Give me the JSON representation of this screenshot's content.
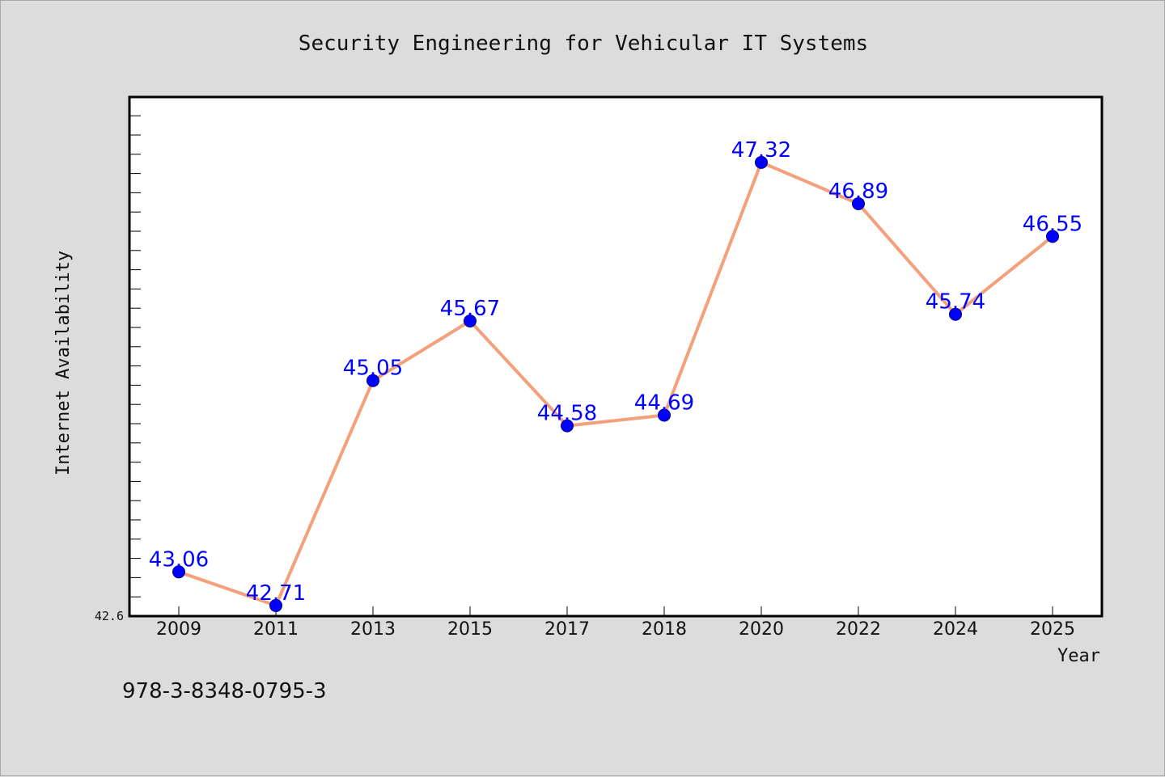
{
  "chart_data": {
    "type": "line",
    "title": "Security Engineering for Vehicular IT Systems",
    "xlabel": "Year",
    "ylabel": "Internet Availability",
    "categories": [
      "2009",
      "2011",
      "2013",
      "2015",
      "2017",
      "2018",
      "2020",
      "2022",
      "2024",
      "2025"
    ],
    "values": [
      43.06,
      42.71,
      45.05,
      45.67,
      44.58,
      44.69,
      47.32,
      46.89,
      45.74,
      46.55
    ],
    "data_labels": [
      "43.06",
      "42.71",
      "45.05",
      "45.67",
      "44.58",
      "44.69",
      "47.32",
      "46.89",
      "45.74",
      "46.55"
    ],
    "y_tick_label": "42.6",
    "ylim": [
      42.6,
      48.0
    ],
    "grid": false,
    "line_color": "#f4a07a",
    "marker_color": "#0000ff"
  },
  "footer": {
    "isbn": "978-3-8348-0795-3"
  }
}
